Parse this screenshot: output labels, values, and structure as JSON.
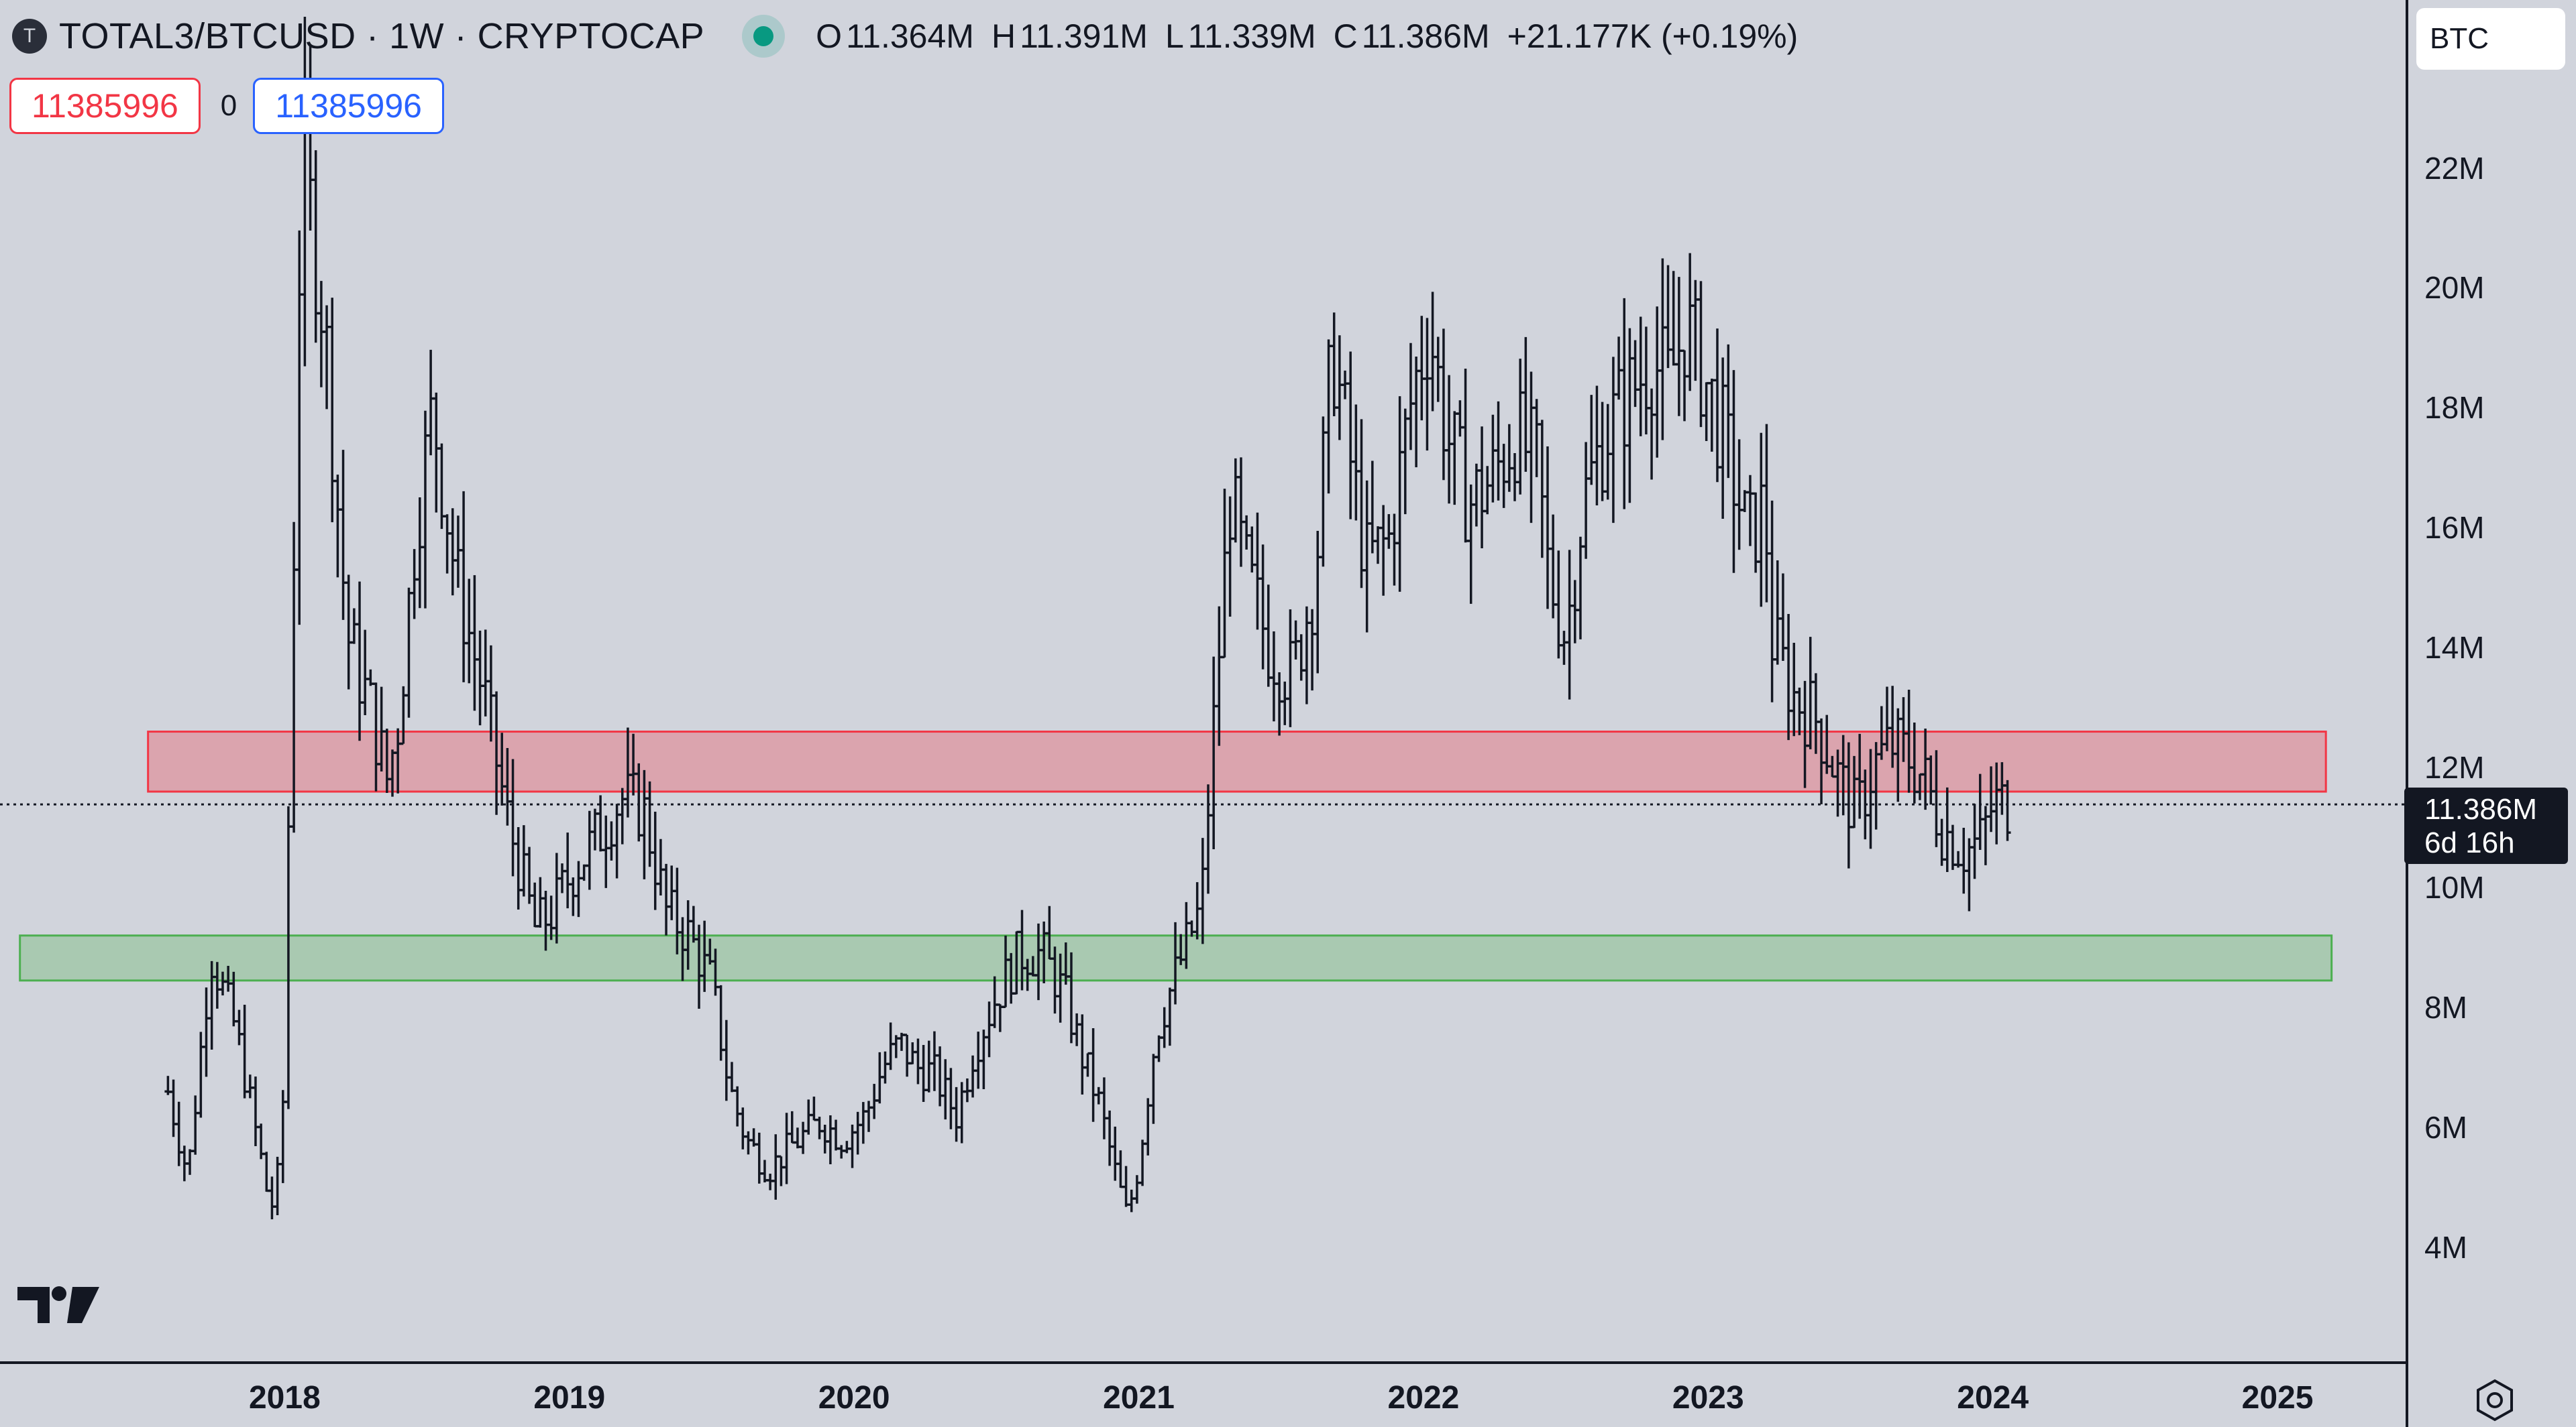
{
  "header": {
    "symbol_icon": "T",
    "title": "TOTAL3/BTCUSD · 1W · CRYPTOCAP",
    "market_status": "market-open-dot",
    "ohlc": {
      "o_label": "O",
      "o": "11.364M",
      "h_label": "H",
      "h": "11.391M",
      "l_label": "L",
      "l": "11.339M",
      "c_label": "C",
      "c": "11.386M",
      "change": "+21.177K (+0.19%)"
    }
  },
  "trade": {
    "sell_price": "11385996",
    "spread": "0",
    "buy_price": "11385996"
  },
  "axis": {
    "currency": "BTC",
    "y_ticks": [
      "22M",
      "20M",
      "18M",
      "16M",
      "14M",
      "12M",
      "10M",
      "8M",
      "6M",
      "4M"
    ],
    "x_ticks": [
      "2018",
      "2019",
      "2020",
      "2021",
      "2022",
      "2023",
      "2024",
      "2025"
    ],
    "last_price": "11.386M",
    "countdown": "6d 16h"
  },
  "colors": {
    "background": "#d1d4dc",
    "bars": "#131722",
    "resistance_zone": "#f23645",
    "support_zone": "#4caf50",
    "sell": "#f23645",
    "buy": "#2962ff"
  },
  "chart_data": {
    "type": "ohlc",
    "symbol": "TOTAL3/BTCUSD",
    "interval": "1W",
    "unit": "M",
    "ylim": [
      2.1,
      24.8
    ],
    "xlim": [
      2017.0,
      2025.45
    ],
    "grid": false,
    "zones": [
      {
        "name": "resistance",
        "color": "#f23645",
        "x_start": 2017.52,
        "x_end": 2025.17,
        "y_low": 11.6,
        "y_high": 12.6
      },
      {
        "name": "support",
        "color": "#4caf50",
        "x_start": 2017.07,
        "x_end": 2025.19,
        "y_low": 8.45,
        "y_high": 9.2
      }
    ],
    "last_price": 11.386,
    "key_points": [
      [
        "2017.59",
        6.6
      ],
      [
        "2017.66",
        5.2
      ],
      [
        "2017.74",
        8.9
      ],
      [
        "2017.83",
        7.6
      ],
      [
        "2017.92",
        5.4
      ],
      [
        "2017.95",
        4.6
      ],
      [
        "2017.99",
        5.5
      ],
      [
        "2018.06",
        22.4
      ],
      [
        "2018.14",
        19.4
      ],
      [
        "2018.22",
        14.2
      ],
      [
        "2018.30",
        13.0
      ],
      [
        "2018.36",
        11.8
      ],
      [
        "2018.40",
        12.8
      ],
      [
        "2018.46",
        16.0
      ],
      [
        "2018.52",
        18.0
      ],
      [
        "2018.60",
        15.2
      ],
      [
        "2018.70",
        13.2
      ],
      [
        "2018.78",
        11.2
      ],
      [
        "2018.88",
        9.3
      ],
      [
        "2018.94",
        9.6
      ],
      [
        "2019.00",
        10.2
      ],
      [
        "2019.06",
        10.6
      ],
      [
        "2019.12",
        11.0
      ],
      [
        "2019.18",
        11.5
      ],
      [
        "2019.26",
        11.3
      ],
      [
        "2019.34",
        9.6
      ],
      [
        "2019.42",
        9.2
      ],
      [
        "2019.50",
        8.4
      ],
      [
        "2019.56",
        6.7
      ],
      [
        "2019.62",
        5.8
      ],
      [
        "2019.70",
        5.3
      ],
      [
        "2019.78",
        5.7
      ],
      [
        "2019.88",
        6.1
      ],
      [
        "2019.96",
        5.8
      ],
      [
        "2020.04",
        6.2
      ],
      [
        "2020.10",
        7.0
      ],
      [
        "2020.16",
        7.4
      ],
      [
        "2020.22",
        7.0
      ],
      [
        "2020.28",
        6.9
      ],
      [
        "2020.36",
        6.2
      ],
      [
        "2020.42",
        7.3
      ],
      [
        "2020.50",
        8.2
      ],
      [
        "2020.58",
        8.9
      ],
      [
        "2020.66",
        8.9
      ],
      [
        "2020.74",
        8.2
      ],
      [
        "2020.80",
        7.2
      ],
      [
        "2020.86",
        6.4
      ],
      [
        "2020.92",
        5.2
      ],
      [
        "2020.96",
        4.5
      ],
      [
        "2021.00",
        5.4
      ],
      [
        "2021.06",
        7.6
      ],
      [
        "2021.14",
        8.7
      ],
      [
        "2021.22",
        9.7
      ],
      [
        "2021.26",
        12.5
      ],
      [
        "2021.32",
        16.5
      ],
      [
        "2021.38",
        15.2
      ],
      [
        "2021.46",
        14.0
      ],
      [
        "2021.54",
        13.5
      ],
      [
        "2021.62",
        15.2
      ],
      [
        "2021.68",
        19.0
      ],
      [
        "2021.74",
        17.2
      ],
      [
        "2021.80",
        15.4
      ],
      [
        "2021.88",
        15.8
      ],
      [
        "2021.96",
        18.2
      ],
      [
        "2022.02",
        19.4
      ],
      [
        "2022.08",
        17.6
      ],
      [
        "2022.16",
        16.4
      ],
      [
        "2022.24",
        16.8
      ],
      [
        "2022.32",
        17.6
      ],
      [
        "2022.40",
        17.0
      ],
      [
        "2022.44",
        15.2
      ],
      [
        "2022.50",
        14.2
      ],
      [
        "2022.56",
        16.4
      ],
      [
        "2022.64",
        17.6
      ],
      [
        "2022.72",
        18.2
      ],
      [
        "2022.80",
        18.8
      ],
      [
        "2022.86",
        18.4
      ],
      [
        "2022.92",
        19.4
      ],
      [
        "2022.98",
        18.6
      ],
      [
        "2023.06",
        17.4
      ],
      [
        "2023.14",
        15.8
      ],
      [
        "2023.20",
        16.4
      ],
      [
        "2023.22",
        14.2
      ],
      [
        "2023.30",
        13.2
      ],
      [
        "2023.38",
        12.8
      ],
      [
        "2023.46",
        11.8
      ],
      [
        "2023.52",
        11.2
      ],
      [
        "2023.58",
        12.0
      ],
      [
        "2023.64",
        12.4
      ],
      [
        "2023.70",
        12.2
      ],
      [
        "2023.76",
        11.8
      ],
      [
        "2023.82",
        11.0
      ],
      [
        "2023.90",
        10.6
      ],
      [
        "2023.96",
        10.8
      ],
      [
        "2024.00",
        11.4
      ],
      [
        "2024.06",
        11.4
      ]
    ]
  }
}
